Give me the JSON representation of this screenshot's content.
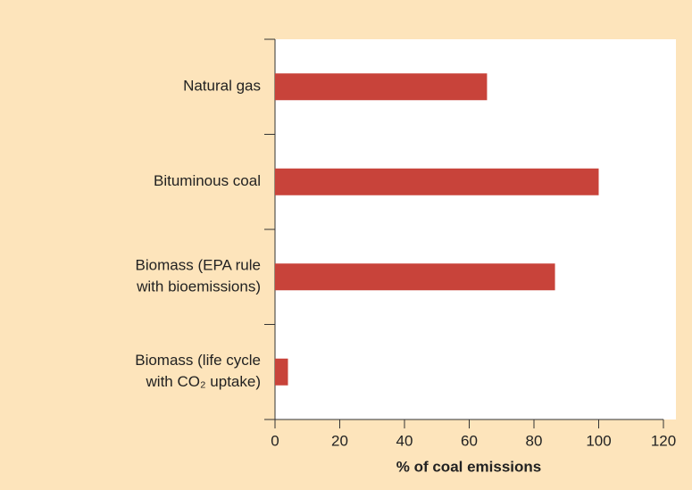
{
  "chart_data": {
    "type": "hbar",
    "xlabel": "% of coal emissions",
    "categories": [
      [
        "Natural gas"
      ],
      [
        "Bituminous coal"
      ],
      [
        "Biomass (EPA rule",
        "with bioemissions)"
      ],
      [
        "Biomass (life cycle",
        "with CO₂ uptake)"
      ]
    ],
    "values": [
      65.5,
      100,
      86.5,
      4
    ],
    "color": "#c8433a",
    "xlim": [
      0,
      120
    ],
    "xticks": [
      0,
      20,
      40,
      60,
      80,
      100,
      120
    ]
  }
}
